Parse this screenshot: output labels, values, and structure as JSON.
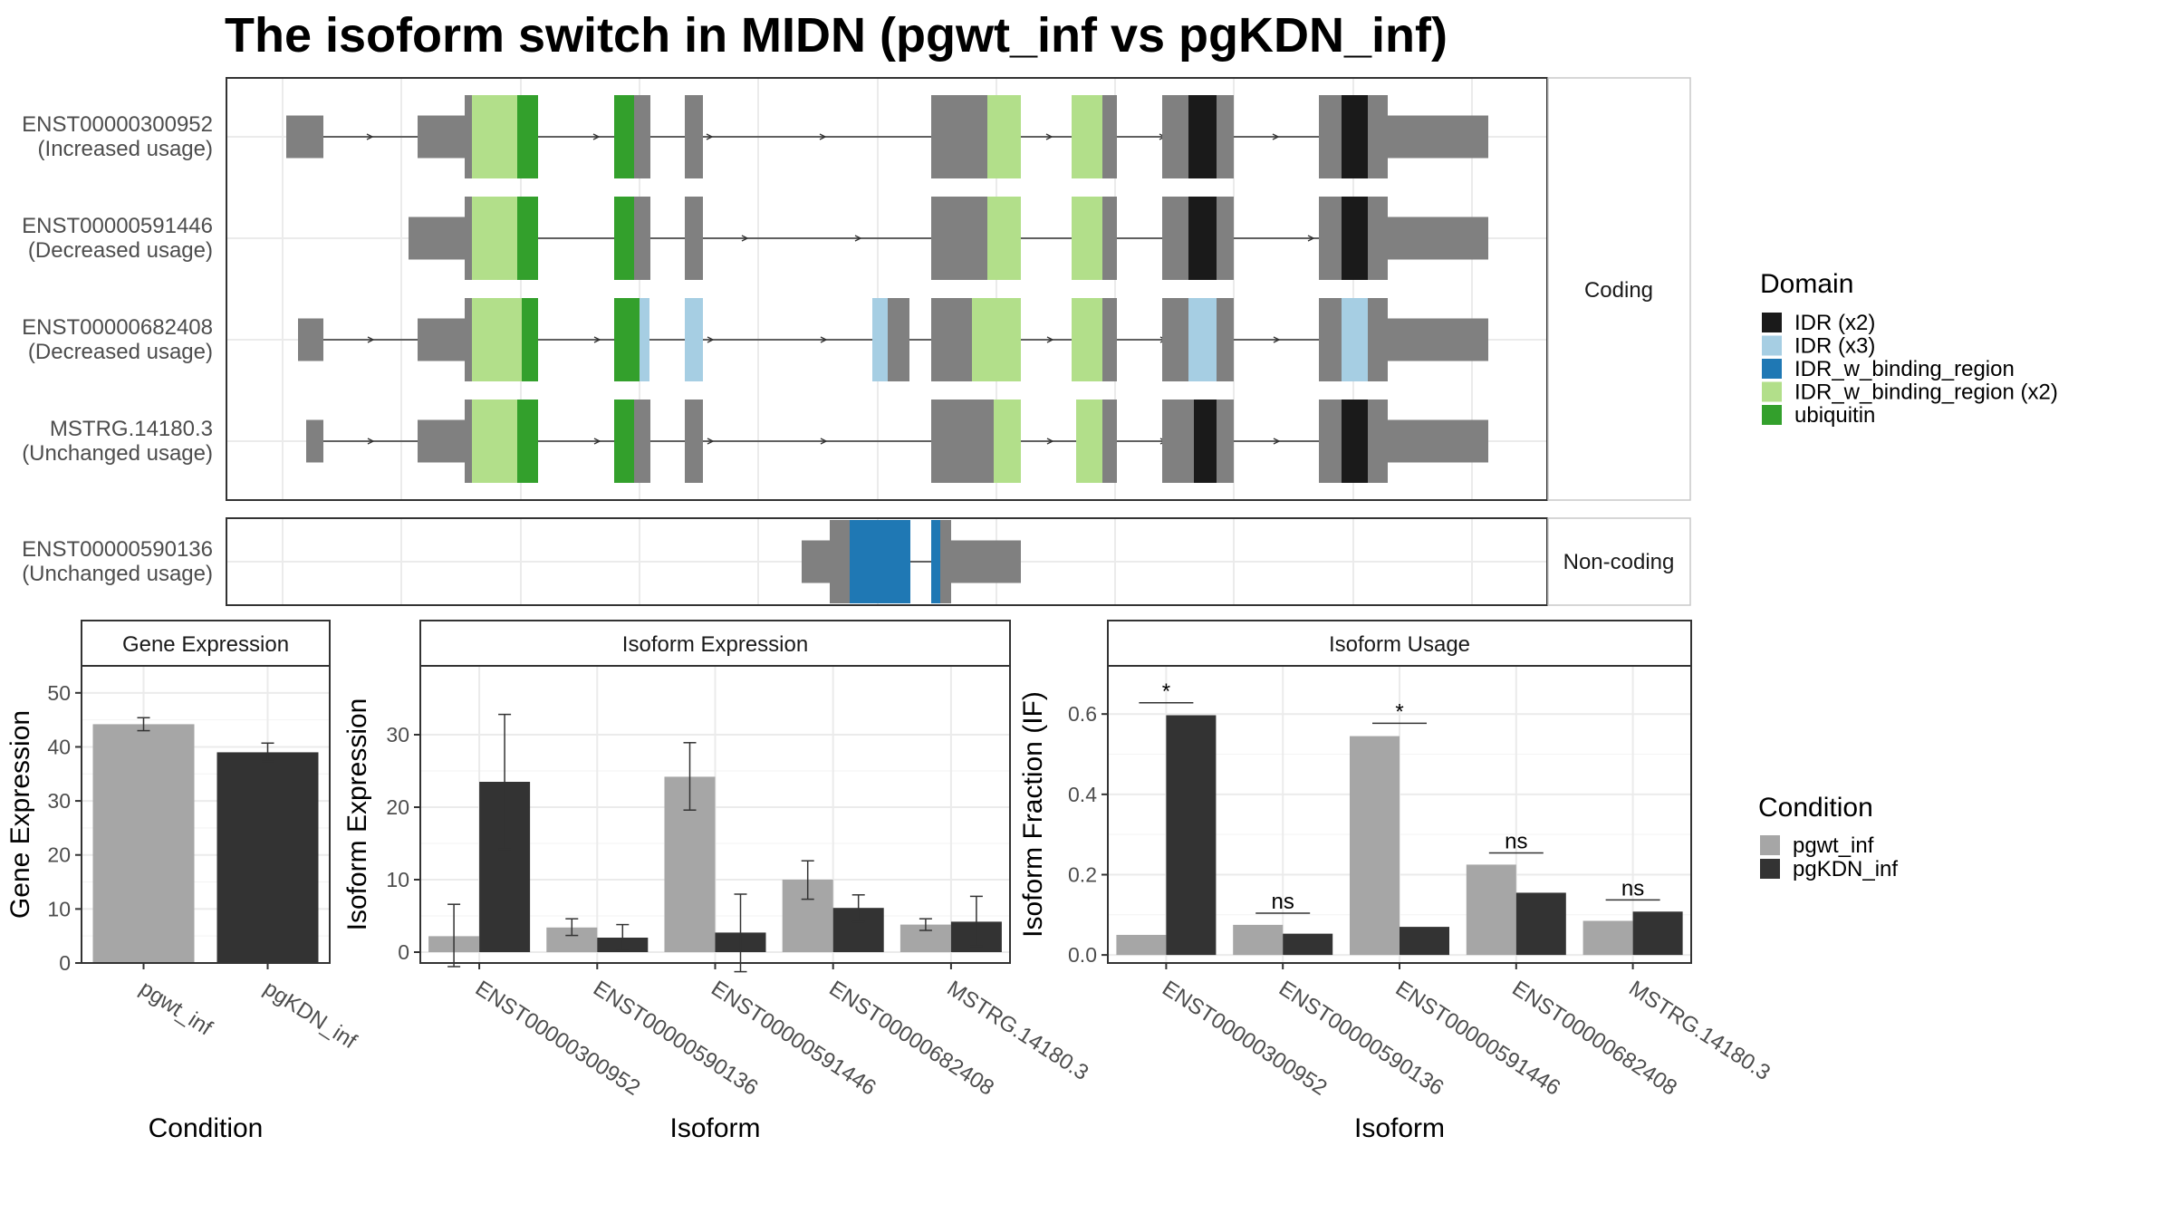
{
  "title": "The isoform switch in MIDN (pgwt_inf vs pgKDN_inf)",
  "colors": {
    "intron_exon": "#808080",
    "IDR_x2": "#1a1a1a",
    "IDR_x3": "#a6cee3",
    "IDR_w_binding_region": "#1f78b4",
    "IDR_w_binding_region_x2": "#b2df8a",
    "ubiquitin": "#33a02c",
    "pgwt_inf": "#a6a6a6",
    "pgKDN_inf": "#333333",
    "panel_border": "#333333",
    "grid": "#ebebeb"
  },
  "structure": {
    "coding_strip": "Coding",
    "noncoding_strip": "Non-coding",
    "coding_isoforms": [
      {
        "id": "ENST00000300952",
        "usage": "(Increased usage)"
      },
      {
        "id": "ENST00000591446",
        "usage": "(Decreased usage)"
      },
      {
        "id": "ENST00000682408",
        "usage": "(Decreased usage)"
      },
      {
        "id": "MSTRG.14180.3",
        "usage": "(Unchanged usage)"
      }
    ],
    "noncoding_isoforms": [
      {
        "id": "ENST00000590136",
        "usage": "(Unchanged usage)"
      }
    ]
  },
  "domain_legend": {
    "title": "Domain",
    "items": [
      {
        "label": "IDR (x2)",
        "color_key": "IDR_x2"
      },
      {
        "label": "IDR (x3)",
        "color_key": "IDR_x3"
      },
      {
        "label": "IDR_w_binding_region",
        "color_key": "IDR_w_binding_region"
      },
      {
        "label": "IDR_w_binding_region (x2)",
        "color_key": "IDR_w_binding_region_x2"
      },
      {
        "label": "ubiquitin",
        "color_key": "ubiquitin"
      }
    ]
  },
  "condition_legend": {
    "title": "Condition",
    "items": [
      {
        "label": "pgwt_inf",
        "color_key": "pgwt_inf"
      },
      {
        "label": "pgKDN_inf",
        "color_key": "pgKDN_inf"
      }
    ]
  },
  "chart_data": [
    {
      "type": "bar",
      "title": "Gene Expression",
      "xlabel": "Condition",
      "ylabel": "Gene Expression",
      "categories": [
        "pgwt_inf",
        "pgKDN_inf"
      ],
      "values": [
        44.2,
        39.0
      ],
      "errors": [
        [
          43.0,
          45.4
        ],
        [
          37.3,
          40.7
        ]
      ],
      "ylim": [
        0,
        55
      ],
      "yticks": [
        0,
        10,
        20,
        30,
        40,
        50
      ]
    },
    {
      "type": "bar",
      "title": "Isoform Expression",
      "xlabel": "Isoform",
      "ylabel": "Isoform Expression",
      "categories": [
        "ENST00000300952",
        "ENST00000590136",
        "ENST00000591446",
        "ENST00000682408",
        "MSTRG.14180.3"
      ],
      "series": [
        {
          "name": "pgwt_inf",
          "values": [
            2.2,
            3.4,
            24.2,
            10.0,
            3.8
          ],
          "errors": [
            [
              -2.0,
              6.6
            ],
            [
              2.3,
              4.6
            ],
            [
              19.6,
              28.9
            ],
            [
              7.3,
              12.6
            ],
            [
              3.0,
              4.6
            ]
          ]
        },
        {
          "name": "pgKDN_inf",
          "values": [
            23.5,
            2.0,
            2.7,
            6.1,
            4.2
          ],
          "errors": [
            [
              14.2,
              32.8
            ],
            [
              0.2,
              3.8
            ],
            [
              -2.7,
              8.0
            ],
            [
              4.2,
              7.9
            ],
            [
              0.8,
              7.7
            ]
          ]
        }
      ],
      "ylim": [
        -1.5,
        39.5
      ],
      "yticks": [
        0,
        10,
        20,
        30
      ]
    },
    {
      "type": "bar",
      "title": "Isoform Usage",
      "xlabel": "Isoform",
      "ylabel": "Isoform Fraction (IF)",
      "categories": [
        "ENST00000300952",
        "ENST00000590136",
        "ENST00000591446",
        "ENST00000682408",
        "MSTRG.14180.3"
      ],
      "series": [
        {
          "name": "pgwt_inf",
          "values": [
            0.05,
            0.075,
            0.545,
            0.225,
            0.085
          ]
        },
        {
          "name": "pgKDN_inf",
          "values": [
            0.597,
            0.053,
            0.07,
            0.155,
            0.108
          ]
        }
      ],
      "significance": [
        {
          "label": "*",
          "y": 0.628
        },
        {
          "label": "ns",
          "y": 0.104
        },
        {
          "label": "*",
          "y": 0.577
        },
        {
          "label": "ns",
          "y": 0.254
        },
        {
          "label": "ns",
          "y": 0.137
        }
      ],
      "ylim": [
        -0.02,
        0.72
      ],
      "yticks": [
        0.0,
        0.2,
        0.4,
        0.6
      ],
      "ytick_labels": [
        "0.0",
        "0.2",
        "0.4",
        "0.6"
      ]
    }
  ]
}
